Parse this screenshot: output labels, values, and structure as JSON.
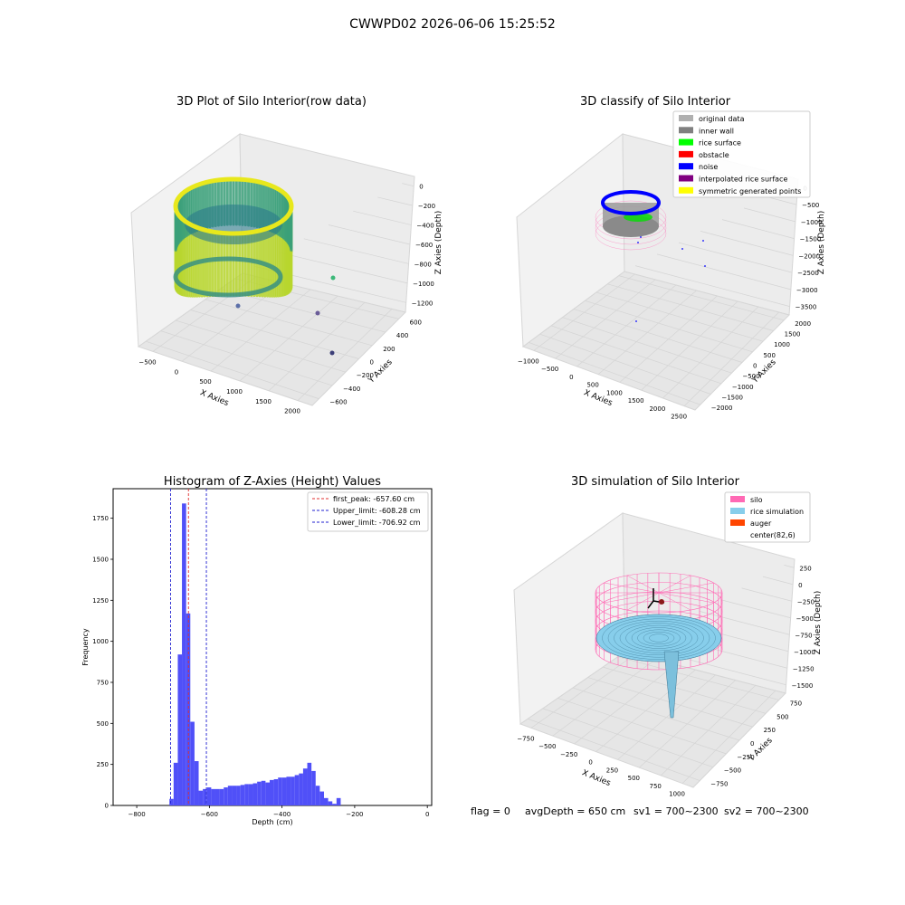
{
  "suptitle": "CWWPD02 2026-06-06 15:25:52",
  "status": {
    "flag": "flag = 0",
    "avg_depth": "avgDepth = 650 cm",
    "sv1": "sv1 = 700~2300",
    "sv2": "sv2 = 700~2300"
  },
  "colors": {
    "histogram_bar": "#5050f8",
    "first_peak_line": "#e03030",
    "limit_line": "#2020d0",
    "pane": "#f2f2f2",
    "silo": "#ff69b4",
    "rice_simulation": "#87ceeb",
    "auger": "#ff4500",
    "original_data": "#b0b0b0",
    "inner_wall": "#808080",
    "rice_surface": "#00ff00",
    "obstacle": "#ff0000",
    "noise": "#0000ff",
    "interpolated_rice_surface": "#800080",
    "symmetric_generated_points": "#ffff00"
  },
  "chart_data": [
    {
      "id": "raw",
      "type": "scatter3d",
      "title": "3D Plot of Silo Interior(row data)",
      "xlabel": "X Axies",
      "ylabel": "Y Axies",
      "zlabel": "Z Axies (Depth)",
      "xticks": [
        "−500",
        "0",
        "500",
        "1000",
        "1500",
        "2000"
      ],
      "yticks": [
        "−600",
        "−400",
        "−200",
        "0",
        "200",
        "400",
        "600"
      ],
      "zticks": [
        "−1200",
        "−1000",
        "−800",
        "−600",
        "−400",
        "−200",
        "0"
      ],
      "outliers": [
        {
          "x": 1500,
          "y": 500,
          "z": -1100
        },
        {
          "x": 200,
          "y": -400,
          "z": -1150
        },
        {
          "x": 1200,
          "y": 300,
          "z": -1200
        },
        {
          "x": 1800,
          "y": -500,
          "z": -1250
        }
      ]
    },
    {
      "id": "classify",
      "type": "scatter3d",
      "title": "3D classify of Silo Interior",
      "xlabel": "X Axies",
      "ylabel": "Y Axies",
      "zlabel": "Z Axies (Depth)",
      "xticks": [
        "−1000",
        "−500",
        "0",
        "500",
        "1000",
        "1500",
        "2000",
        "2500"
      ],
      "yticks": [
        "−2000",
        "−1500",
        "−1000",
        "−500",
        "0",
        "500",
        "1000",
        "1500",
        "2000"
      ],
      "zticks": [
        "−3500",
        "−3000",
        "−2500",
        "−2000",
        "−1500",
        "−1000",
        "−500",
        "0"
      ],
      "legend_position": "upper-right",
      "legend": [
        {
          "label": "original data",
          "color": "#b0b0b0"
        },
        {
          "label": "inner wall",
          "color": "#808080"
        },
        {
          "label": "rice surface",
          "color": "#00ff00"
        },
        {
          "label": "obstacle",
          "color": "#ff0000"
        },
        {
          "label": "noise",
          "color": "#0000ff"
        },
        {
          "label": "interpolated rice surface",
          "color": "#800080"
        },
        {
          "label": "symmetric generated points",
          "color": "#ffff00"
        }
      ]
    },
    {
      "id": "hist",
      "type": "bar",
      "title": "Histogram of Z-Axies (Height) Values",
      "xlabel": "Depth (cm)",
      "ylabel": "Frequency",
      "xlim": [
        -865,
        12
      ],
      "ylim": [
        0,
        1930
      ],
      "xticks": [
        -800,
        -600,
        -400,
        -200,
        0
      ],
      "xtick_labels": [
        "−800",
        "−600",
        "−400",
        "−200",
        "0"
      ],
      "yticks": [
        0,
        250,
        500,
        750,
        1000,
        1250,
        1500,
        1750
      ],
      "bin_start": -710,
      "bin_width": 11.5,
      "values": [
        40,
        260,
        920,
        1840,
        1170,
        510,
        270,
        90,
        100,
        110,
        100,
        100,
        100,
        110,
        120,
        120,
        120,
        125,
        130,
        130,
        135,
        145,
        150,
        140,
        155,
        160,
        170,
        170,
        175,
        175,
        185,
        195,
        225,
        260,
        210,
        120,
        85,
        45,
        25,
        10,
        45
      ],
      "vlines": [
        {
          "label": "first_peak: -657.60 cm",
          "x": -657.6,
          "color": "#e03030"
        },
        {
          "label": "Upper_limit: -608.28 cm",
          "x": -608.28,
          "color": "#2020d0"
        },
        {
          "label": "Lower_limit: -706.92 cm",
          "x": -706.92,
          "color": "#2020d0"
        }
      ],
      "legend_position": "upper-right"
    },
    {
      "id": "sim",
      "type": "surface3d",
      "title": "3D simulation of Silo Interior",
      "xlabel": "X Axies",
      "ylabel": "Y Axies",
      "zlabel": "Z Axies (Depth)",
      "xticks": [
        "−750",
        "−500",
        "−250",
        "0",
        "250",
        "500",
        "750",
        "1000"
      ],
      "yticks": [
        "−750",
        "−500",
        "−250",
        "0",
        "250",
        "500",
        "750"
      ],
      "zticks": [
        "−1500",
        "−1250",
        "−1000",
        "−750",
        "−500",
        "−250",
        "0",
        "250"
      ],
      "legend_position": "upper-right",
      "legend": [
        {
          "label": "silo",
          "color": "#ff69b4"
        },
        {
          "label": "rice simulation",
          "color": "#87ceeb"
        },
        {
          "label": "auger",
          "color": "#ff4500"
        },
        {
          "label": "center(82,6)",
          "color": "#ffffff"
        }
      ]
    }
  ]
}
